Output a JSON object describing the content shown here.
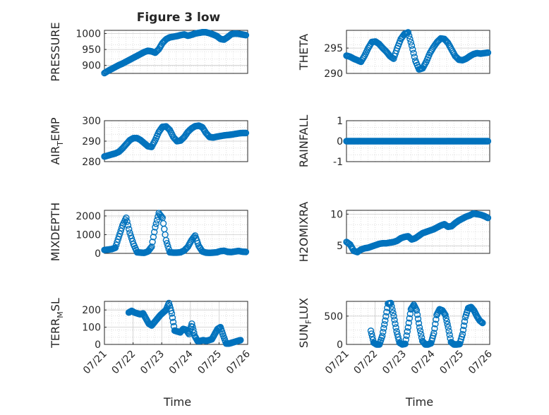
{
  "figure": {
    "title": "Figure 3 low",
    "colors": {
      "marker": "#0072BD",
      "grid": "#d9d9d9",
      "axes": "#262626"
    }
  },
  "chart_data": [
    {
      "type": "scatter",
      "ylabel": "PRESSURE",
      "xlabel": "",
      "ylim": [
        875,
        1010
      ],
      "yticks": [
        900,
        950,
        1000
      ],
      "ytick_labels": [
        "900",
        "950",
        "1000"
      ],
      "xlim": [
        21.85,
        25.8
      ],
      "grid": true,
      "x": [
        21.85,
        21.95,
        22.05,
        22.15,
        22.25,
        22.35,
        22.45,
        22.55,
        22.65,
        22.75,
        22.85,
        22.95,
        23.05,
        23.15,
        23.25,
        23.35,
        23.45,
        23.55,
        23.65,
        23.75,
        23.85,
        23.95,
        24.05,
        24.15,
        24.25,
        24.35,
        24.45,
        24.55,
        24.65,
        24.75,
        24.85,
        24.95,
        25.05,
        25.15,
        25.25,
        25.35,
        25.45,
        25.55,
        25.65,
        25.75
      ],
      "y": [
        876,
        883,
        889,
        895,
        901,
        906,
        912,
        918,
        924,
        930,
        936,
        942,
        946,
        944,
        940,
        951,
        970,
        982,
        988,
        990,
        992,
        995,
        997,
        993,
        996,
        1000,
        1002,
        1004,
        1004,
        1001,
        997,
        992,
        983,
        981,
        989,
        998,
        1000,
        999,
        997,
        995
      ]
    },
    {
      "type": "scatter",
      "ylabel": "THETA",
      "xlabel": "",
      "ylim": [
        290,
        298.5
      ],
      "yticks": [
        290,
        295
      ],
      "ytick_labels": [
        "290",
        "295"
      ],
      "xlim": [
        21.85,
        25.8
      ],
      "grid": true,
      "x": [
        21.85,
        21.95,
        22.05,
        22.15,
        22.25,
        22.35,
        22.45,
        22.55,
        22.65,
        22.75,
        22.85,
        22.95,
        23.05,
        23.15,
        23.25,
        23.35,
        23.45,
        23.55,
        23.65,
        23.75,
        23.85,
        23.95,
        24.05,
        24.15,
        24.25,
        24.35,
        24.45,
        24.55,
        24.65,
        24.75,
        24.85,
        24.95,
        25.05,
        25.15,
        25.25,
        25.35,
        25.45,
        25.55,
        25.65,
        25.75
      ],
      "y": [
        293.5,
        293.3,
        292.9,
        292.6,
        292.3,
        293.5,
        295,
        296.2,
        296.3,
        295.8,
        295,
        294.3,
        293.4,
        292.9,
        295,
        296.8,
        297.8,
        298.1,
        295.5,
        292.5,
        290.8,
        291,
        292.3,
        294,
        295.2,
        296.2,
        296.9,
        296.8,
        296,
        294.7,
        293.4,
        292.7,
        292.6,
        292.9,
        293.4,
        293.8,
        294,
        293.9,
        294,
        294.1
      ]
    },
    {
      "type": "scatter",
      "ylabel": "AIR_TEMP",
      "xlabel": "",
      "ylim": [
        280,
        300
      ],
      "yticks": [
        280,
        290,
        300
      ],
      "ytick_labels": [
        "280",
        "290",
        "300"
      ],
      "xlim": [
        21.85,
        25.8
      ],
      "grid": true,
      "x": [
        21.85,
        21.95,
        22.05,
        22.15,
        22.25,
        22.35,
        22.45,
        22.55,
        22.65,
        22.75,
        22.85,
        22.95,
        23.05,
        23.15,
        23.25,
        23.35,
        23.45,
        23.55,
        23.65,
        23.75,
        23.85,
        23.95,
        24.05,
        24.15,
        24.25,
        24.35,
        24.45,
        24.55,
        24.65,
        24.75,
        24.85,
        24.95,
        25.05,
        25.15,
        25.25,
        25.35,
        25.45,
        25.55,
        25.65,
        25.75
      ],
      "y": [
        282.5,
        283,
        283.5,
        284,
        284.8,
        286.5,
        288.5,
        290.5,
        291.5,
        291.5,
        290.5,
        289,
        287.5,
        287.2,
        290.5,
        294.5,
        297,
        297.2,
        295.5,
        292,
        290,
        290.3,
        292,
        294.5,
        296.2,
        297.3,
        297.6,
        296.8,
        294,
        292,
        291.8,
        292.2,
        292.5,
        292.8,
        293,
        293.2,
        293.5,
        293.8,
        294,
        294
      ]
    },
    {
      "type": "scatter",
      "ylabel": "RAINFALL",
      "xlabel": "",
      "ylim": [
        -1,
        1
      ],
      "yticks": [
        -1,
        0,
        1
      ],
      "ytick_labels": [
        "-1",
        "0",
        "1"
      ],
      "xlim": [
        21.85,
        25.8
      ],
      "grid": true,
      "x": [
        21.85,
        21.95,
        22.05,
        22.15,
        22.25,
        22.35,
        22.45,
        22.55,
        22.65,
        22.75,
        22.85,
        22.95,
        23.05,
        23.15,
        23.25,
        23.35,
        23.45,
        23.55,
        23.65,
        23.75,
        23.85,
        23.95,
        24.05,
        24.15,
        24.25,
        24.35,
        24.45,
        24.55,
        24.65,
        24.75,
        24.85,
        24.95,
        25.05,
        25.15,
        25.25,
        25.35,
        25.45,
        25.55,
        25.65,
        25.75
      ],
      "y": [
        0,
        0,
        0,
        0,
        0,
        0,
        0,
        0,
        0,
        0,
        0,
        0,
        0,
        0,
        0,
        0,
        0,
        0,
        0,
        0,
        0,
        0,
        0,
        0,
        0,
        0,
        0,
        0,
        0,
        0,
        0,
        0,
        0,
        0,
        0,
        0,
        0,
        0,
        0,
        0
      ]
    },
    {
      "type": "scatter",
      "ylabel": "MIXDEPTH",
      "xlabel": "",
      "ylim": [
        0,
        2300
      ],
      "yticks": [
        0,
        1000,
        2000
      ],
      "ytick_labels": [
        "0",
        "1000",
        "2000"
      ],
      "xlim": [
        21.85,
        25.8
      ],
      "grid": true,
      "x": [
        21.85,
        21.95,
        22.05,
        22.15,
        22.25,
        22.35,
        22.45,
        22.55,
        22.65,
        22.75,
        22.85,
        22.95,
        23.05,
        23.15,
        23.25,
        23.35,
        23.45,
        23.55,
        23.65,
        23.75,
        23.85,
        23.95,
        24.05,
        24.15,
        24.25,
        24.35,
        24.45,
        24.55,
        24.65,
        24.75,
        24.85,
        24.95,
        25.05,
        25.15,
        25.25,
        25.35,
        25.45,
        25.55,
        25.65,
        25.75
      ],
      "y": [
        180,
        200,
        230,
        300,
        900,
        1500,
        1900,
        1100,
        500,
        60,
        40,
        30,
        100,
        350,
        1400,
        2150,
        1900,
        700,
        60,
        40,
        40,
        60,
        150,
        350,
        700,
        950,
        400,
        100,
        40,
        30,
        40,
        60,
        120,
        140,
        80,
        70,
        100,
        130,
        90,
        80
      ]
    },
    {
      "type": "scatter",
      "ylabel": "H2OMIXRA",
      "xlabel": "",
      "ylim": [
        3.8,
        10.6
      ],
      "yticks": [
        5,
        10
      ],
      "ytick_labels": [
        "5",
        "10"
      ],
      "xlim": [
        21.85,
        25.8
      ],
      "grid": true,
      "x": [
        21.85,
        21.95,
        22.05,
        22.15,
        22.25,
        22.35,
        22.45,
        22.55,
        22.65,
        22.75,
        22.85,
        22.95,
        23.05,
        23.15,
        23.25,
        23.35,
        23.45,
        23.55,
        23.65,
        23.75,
        23.85,
        23.95,
        24.05,
        24.15,
        24.25,
        24.35,
        24.45,
        24.55,
        24.65,
        24.75,
        24.85,
        24.95,
        25.05,
        25.15,
        25.25,
        25.35,
        25.45,
        25.55,
        25.65,
        25.75
      ],
      "y": [
        5.6,
        5.2,
        4.2,
        4.0,
        4.4,
        4.6,
        4.7,
        4.9,
        5.1,
        5.3,
        5.4,
        5.4,
        5.5,
        5.6,
        5.8,
        6.2,
        6.4,
        6.5,
        6.0,
        6.2,
        6.6,
        7.0,
        7.2,
        7.4,
        7.6,
        7.9,
        8.2,
        8.4,
        8.0,
        8.1,
        8.6,
        9.0,
        9.3,
        9.6,
        9.8,
        10.1,
        10.0,
        9.9,
        9.7,
        9.4
      ]
    },
    {
      "type": "scatter",
      "ylabel": "TERR_MSL",
      "xlabel": "Time",
      "ylim": [
        0,
        250
      ],
      "yticks": [
        0,
        100,
        200
      ],
      "ytick_labels": [
        "0",
        "100",
        "200"
      ],
      "xlim": [
        21,
        26
      ],
      "xticks": [
        21,
        22,
        23,
        24,
        25,
        26
      ],
      "xtick_labels": [
        "07/21",
        "07/22",
        "07/23",
        "07/24",
        "07/25",
        "07/26"
      ],
      "grid": true,
      "x": [
        21.85,
        21.95,
        22.05,
        22.15,
        22.25,
        22.35,
        22.45,
        22.55,
        22.65,
        22.75,
        22.85,
        22.95,
        23.05,
        23.15,
        23.25,
        23.35,
        23.45,
        23.55,
        23.65,
        23.75,
        23.85,
        23.95,
        24.05,
        24.15,
        24.25,
        24.35,
        24.45,
        24.55,
        24.65,
        24.75,
        24.85,
        24.95,
        25.05,
        25.15,
        25.25,
        25.35,
        25.45,
        25.55,
        25.65,
        25.75
      ],
      "y": [
        185,
        195,
        185,
        180,
        175,
        180,
        150,
        120,
        110,
        130,
        150,
        170,
        185,
        200,
        240,
        180,
        80,
        75,
        70,
        90,
        85,
        60,
        120,
        50,
        20,
        20,
        25,
        20,
        25,
        30,
        60,
        90,
        100,
        50,
        5,
        5,
        10,
        15,
        20,
        25
      ]
    },
    {
      "type": "scatter",
      "ylabel": "SUN_FLUX",
      "xlabel": "Time",
      "ylim": [
        0,
        760
      ],
      "yticks": [
        0,
        500
      ],
      "ytick_labels": [
        "0",
        "500"
      ],
      "xlim": [
        21,
        26
      ],
      "xticks": [
        21,
        22,
        23,
        24,
        25,
        26
      ],
      "xtick_labels": [
        "07/21",
        "07/22",
        "07/23",
        "07/24",
        "07/25",
        "07/26"
      ],
      "grid": true,
      "x": [
        21.85,
        21.95,
        22.05,
        22.15,
        22.25,
        22.35,
        22.45,
        22.55,
        22.65,
        22.75,
        22.85,
        22.95,
        23.05,
        23.15,
        23.25,
        23.35,
        23.45,
        23.55,
        23.65,
        23.75,
        23.85,
        23.95,
        24.05,
        24.15,
        24.25,
        24.35,
        24.45,
        24.55,
        24.65,
        24.75,
        24.85,
        24.95,
        25.05,
        25.15,
        25.25,
        25.35,
        25.45,
        25.55,
        25.65,
        25.75
      ],
      "y": [
        240,
        30,
        0,
        0,
        150,
        420,
        720,
        730,
        500,
        230,
        30,
        0,
        10,
        300,
        620,
        700,
        600,
        300,
        60,
        0,
        0,
        20,
        200,
        520,
        620,
        600,
        520,
        300,
        40,
        0,
        0,
        5,
        180,
        480,
        640,
        660,
        600,
        500,
        420,
        380
      ]
    }
  ]
}
